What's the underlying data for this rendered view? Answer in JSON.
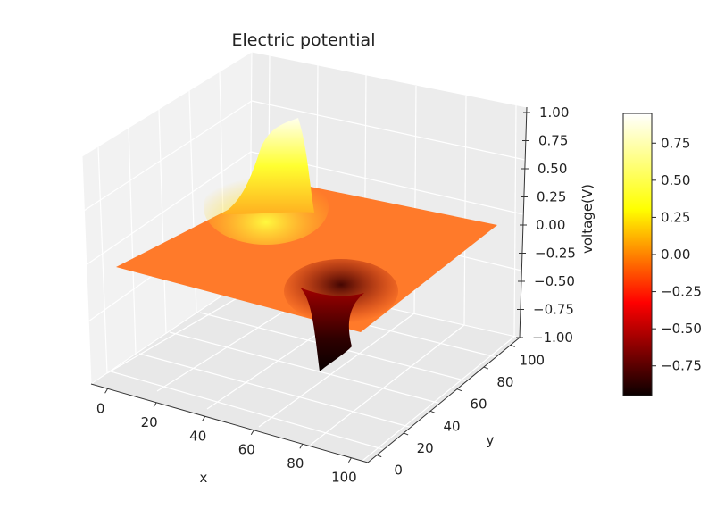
{
  "chart_data": {
    "type": "surface3d",
    "title": "Electric potential",
    "xlabel": "x",
    "ylabel": "y",
    "zlabel": "voltage(V)",
    "x_ticks": [
      "0",
      "20",
      "40",
      "60",
      "80",
      "100"
    ],
    "y_ticks": [
      "0",
      "20",
      "40",
      "60",
      "80",
      "100"
    ],
    "z_ticks": [
      "−1.00",
      "−0.75",
      "−0.50",
      "−0.25",
      "0.00",
      "0.25",
      "0.50",
      "0.75",
      "1.00"
    ],
    "xlim": [
      0,
      100
    ],
    "ylim": [
      0,
      100
    ],
    "zlim": [
      -1,
      1
    ],
    "grid": true,
    "colormap": "hot",
    "colorbar": {
      "ticks": [
        "−0.75",
        "−0.50",
        "−0.25",
        "0.00",
        "0.25",
        "0.50",
        "0.75"
      ],
      "range": [
        -0.95,
        0.95
      ]
    },
    "surface": {
      "baseline_value": 0.0,
      "peak": {
        "x": 40,
        "y": 80,
        "value": 0.95
      },
      "trough": {
        "x": 60,
        "y": 20,
        "value": -0.95
      }
    }
  }
}
